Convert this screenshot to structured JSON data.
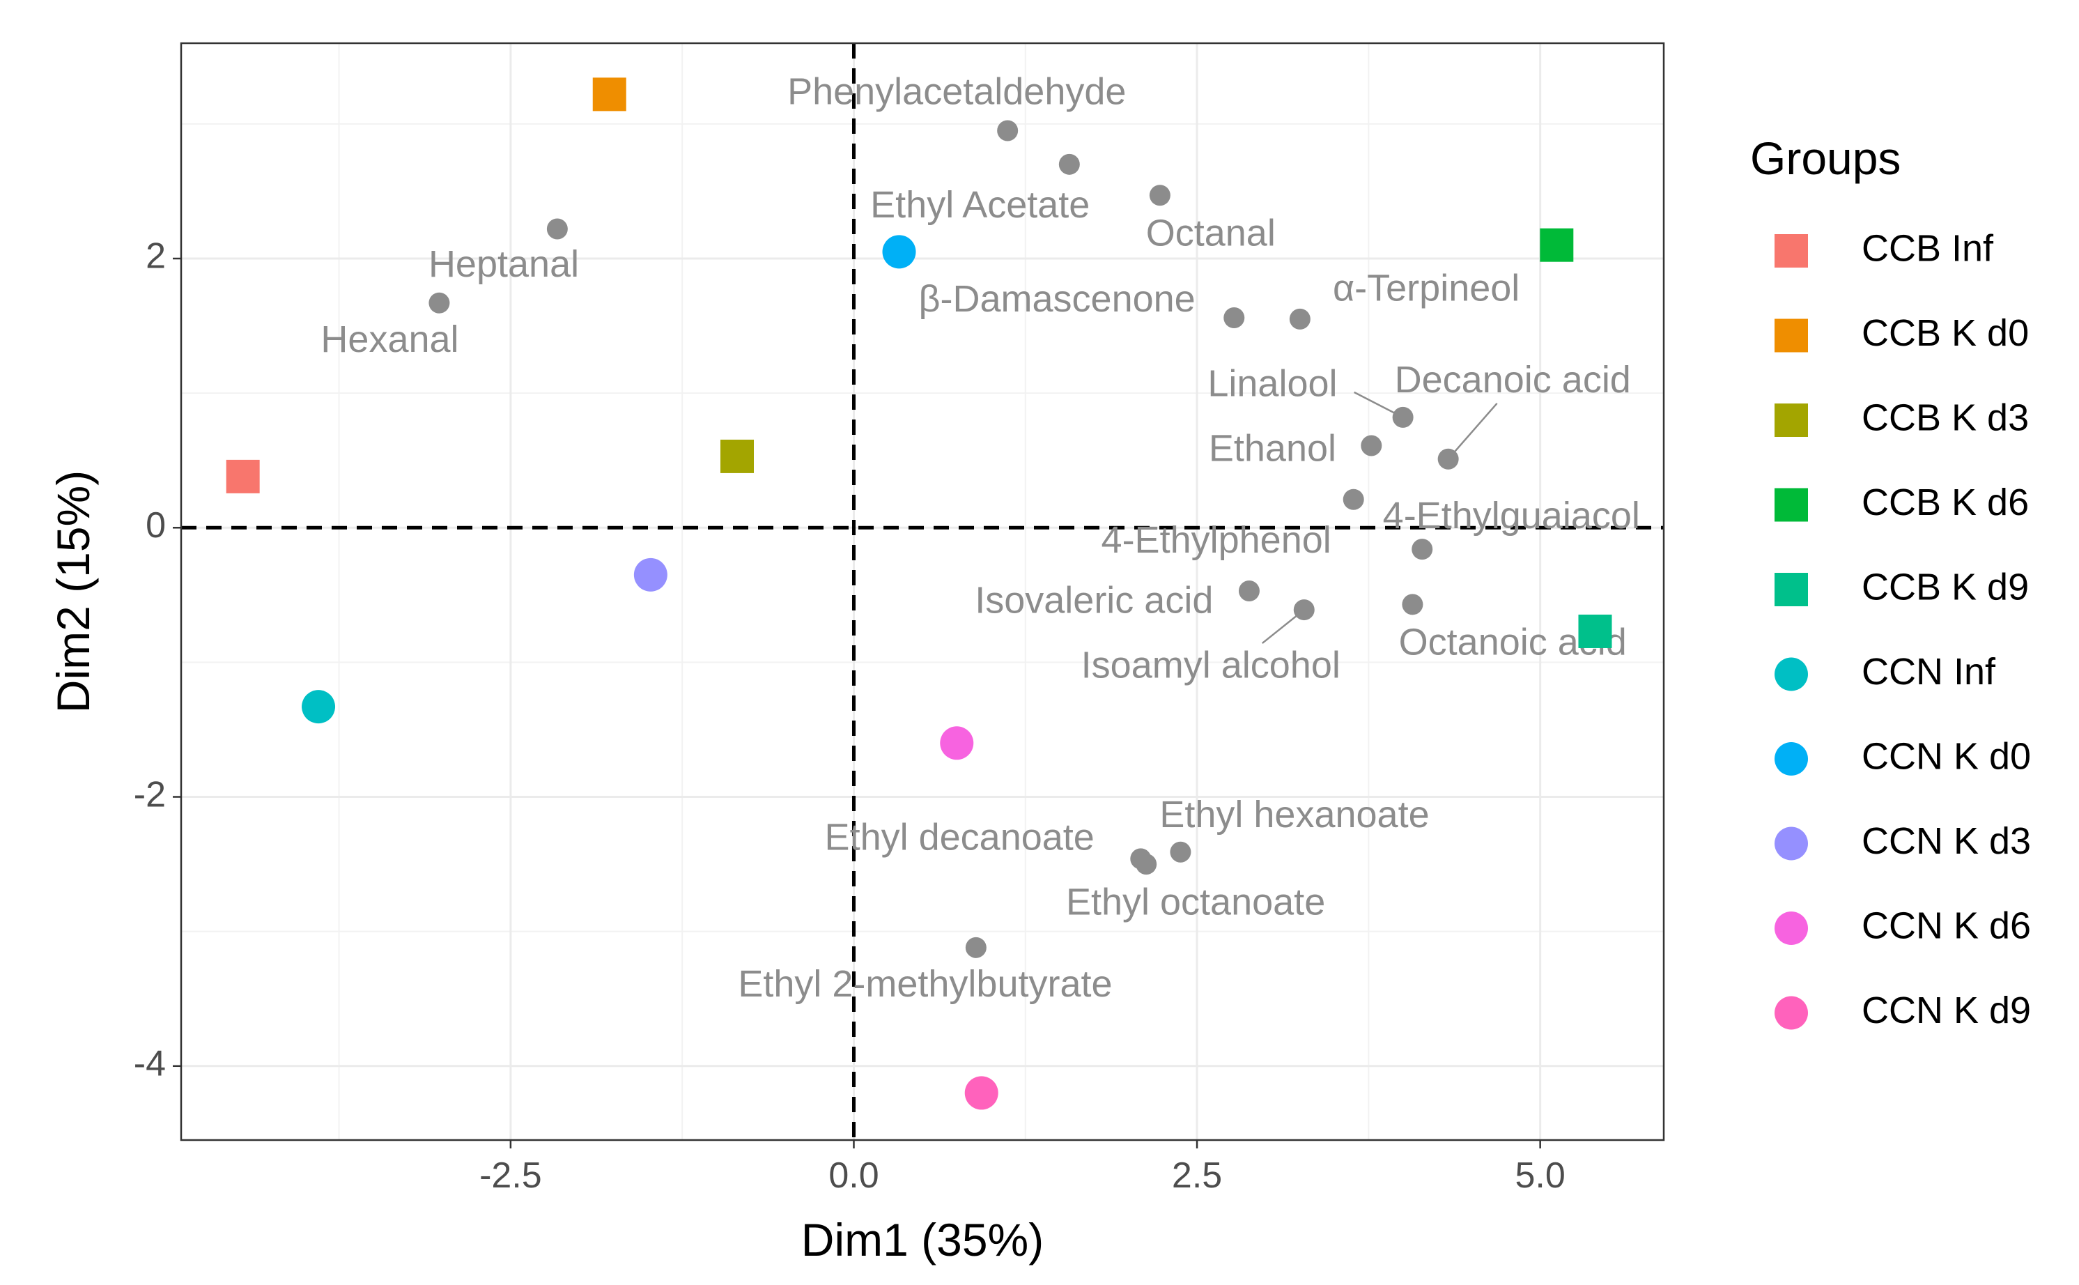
{
  "chart_data": {
    "type": "scatter",
    "title": "",
    "xlabel": "Dim1 (35%)",
    "ylabel": "Dim2 (15%)",
    "xlim": [
      -4.9,
      5.9
    ],
    "ylim": [
      -4.55,
      3.6
    ],
    "xticks": [
      -2.5,
      0.0,
      2.5,
      5.0
    ],
    "xtick_labels": [
      "-2.5",
      "0.0",
      "2.5",
      "5.0"
    ],
    "yticks": [
      -4,
      -2,
      0,
      2
    ],
    "ytick_labels": [
      "-4",
      "-2",
      "0",
      "2"
    ],
    "grid": true,
    "reference_lines": {
      "x": 0,
      "y": 0,
      "style": "dashed"
    },
    "legend": {
      "title": "Groups",
      "placement": "right",
      "entries": [
        {
          "label": "CCB Inf",
          "color": "#F8766D",
          "shape": "square"
        },
        {
          "label": "CCB K d0",
          "color": "#EF8E00",
          "shape": "square"
        },
        {
          "label": "CCB K d3",
          "color": "#A3A500",
          "shape": "square"
        },
        {
          "label": "CCB K d6",
          "color": "#00BA38",
          "shape": "square"
        },
        {
          "label": "CCB K d9",
          "color": "#00C08B",
          "shape": "square"
        },
        {
          "label": "CCN Inf",
          "color": "#00BFC4",
          "shape": "circle"
        },
        {
          "label": "CCN K d0",
          "color": "#00B0F6",
          "shape": "circle"
        },
        {
          "label": "CCN K d3",
          "color": "#9590FF",
          "shape": "circle"
        },
        {
          "label": "CCN K d6",
          "color": "#F763E0",
          "shape": "circle"
        },
        {
          "label": "CCN K d9",
          "color": "#FF62BC",
          "shape": "circle"
        }
      ]
    },
    "groups": [
      {
        "name": "CCB Inf",
        "x": -4.45,
        "y": 0.38
      },
      {
        "name": "CCB K d0",
        "x": -1.78,
        "y": 3.22
      },
      {
        "name": "CCB K d3",
        "x": -0.85,
        "y": 0.53
      },
      {
        "name": "CCB K d6",
        "x": 5.12,
        "y": 2.1
      },
      {
        "name": "CCB K d9",
        "x": 5.4,
        "y": -0.77
      },
      {
        "name": "CCN Inf",
        "x": -3.9,
        "y": -1.33
      },
      {
        "name": "CCN K d0",
        "x": 0.33,
        "y": 2.05
      },
      {
        "name": "CCN K d3",
        "x": -1.48,
        "y": -0.35
      },
      {
        "name": "CCN K d6",
        "x": 0.75,
        "y": -1.6
      },
      {
        "name": "CCN K d9",
        "x": 0.93,
        "y": -4.2
      }
    ],
    "variables_color": "#8c8c8c",
    "variables": [
      {
        "name": "Phenylacetaldehyde",
        "x": 1.12,
        "y": 2.95,
        "label_x": 0.75,
        "label_y": 3.22
      },
      {
        "name": "",
        "x": 1.57,
        "y": 2.7
      },
      {
        "name": "Octanal",
        "x": 2.23,
        "y": 2.47,
        "label_x": 2.6,
        "label_y": 2.17
      },
      {
        "name": "Ethyl Acetate",
        "x": 0.33,
        "y": 2.05,
        "label_x": 0.92,
        "label_y": 2.38
      },
      {
        "name": "Heptanal",
        "x": -2.16,
        "y": 2.22,
        "label_x": -2.55,
        "label_y": 1.94
      },
      {
        "name": "Hexanal",
        "x": -3.02,
        "y": 1.67,
        "label_x": -3.38,
        "label_y": 1.38
      },
      {
        "name": "β-Damascenone",
        "x": 2.77,
        "y": 1.56,
        "label_x": 1.48,
        "label_y": 1.68
      },
      {
        "name": "α-Terpineol",
        "x": 3.25,
        "y": 1.55,
        "label_x": 4.17,
        "label_y": 1.76
      },
      {
        "name": "Linalool",
        "x": 4.0,
        "y": 0.82,
        "label_x": 3.05,
        "label_y": 1.05
      },
      {
        "name": "Decanoic acid",
        "x": 4.33,
        "y": 0.51,
        "label_x": 4.8,
        "label_y": 1.08
      },
      {
        "name": "Ethanol",
        "x": 3.77,
        "y": 0.61,
        "label_x": 3.05,
        "label_y": 0.57
      },
      {
        "name": "4-Ethylguaiacol",
        "x": 3.64,
        "y": 0.21,
        "label_x": 4.79,
        "label_y": 0.07
      },
      {
        "name": "4-Ethylphenol",
        "x": 4.14,
        "y": -0.16,
        "label_x": 2.64,
        "label_y": -0.11
      },
      {
        "name": "Isovaleric acid",
        "x": 2.88,
        "y": -0.47,
        "label_x": 1.75,
        "label_y": -0.56
      },
      {
        "name": "Isoamyl alcohol",
        "x": 3.28,
        "y": -0.61,
        "label_x": 2.6,
        "label_y": -1.04
      },
      {
        "name": "Octanoic acid",
        "x": 4.07,
        "y": -0.57,
        "label_x": 4.8,
        "label_y": -0.87
      },
      {
        "name": "Ethyl hexanoate",
        "x": 2.38,
        "y": -2.41,
        "label_x": 3.21,
        "label_y": -2.15
      },
      {
        "name": "Ethyl decanoate",
        "x": 2.09,
        "y": -2.46,
        "label_x": 0.77,
        "label_y": -2.32
      },
      {
        "name": "Ethyl octanoate",
        "x": 2.13,
        "y": -2.5,
        "label_x": 2.49,
        "label_y": -2.8
      },
      {
        "name": "Ethyl 2-methylbutyrate",
        "x": 0.89,
        "y": -3.12,
        "label_x": 0.52,
        "label_y": -3.41
      }
    ]
  }
}
